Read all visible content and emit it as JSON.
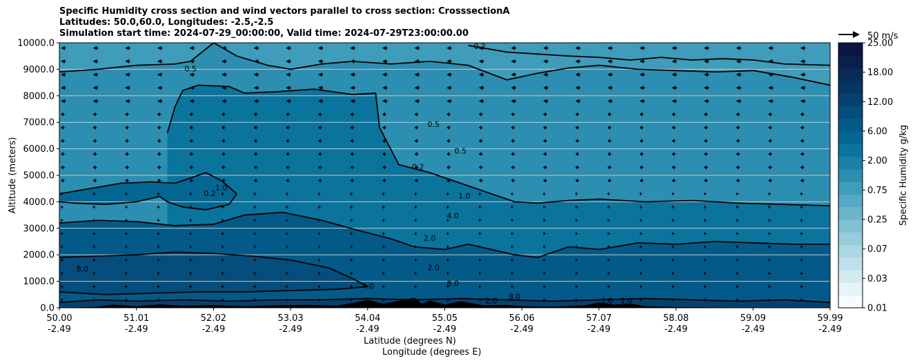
{
  "title_lines": [
    "Specific Humidity cross section and wind vectors parallel to cross section: CrosssectionA",
    "Latitudes: 50.0,60.0, Longitudes: -2.5,-2.5",
    "Simulation start time: 2024-07-29_00:00:00, Valid time: 2024-07-29T23:00:00.00"
  ],
  "quiver_key_label": "50 m/s",
  "colorbar": {
    "label": "Specific Humidity g/kg",
    "tick_labels": [
      "0.01",
      "0.03",
      "0.07",
      "0.25",
      "0.75",
      "2.00",
      "6.00",
      "12.00",
      "18.00",
      "25.00"
    ],
    "colors": [
      "#f7fbfd",
      "#e6f3f7",
      "#d3eaf1",
      "#bfe0ea",
      "#abd6e3",
      "#96ccdc",
      "#80c1d4",
      "#6ab5cc",
      "#55a9c4",
      "#3f9cbb",
      "#2c8fb1",
      "#1981a7",
      "#0b749d",
      "#046793",
      "#035a88",
      "#044d7c",
      "#05416f",
      "#063563",
      "#082a57",
      "#0a204b",
      "#0c1641"
    ]
  },
  "chart_data": {
    "type": "heatmap",
    "title": "Specific Humidity cross section and wind vectors parallel to cross section: CrosssectionA",
    "xlabel": [
      "Latitude (degrees N)",
      "Longitude (degrees E)"
    ],
    "ylabel": "Altitude (meters)",
    "xlim": [
      50.0,
      59.99
    ],
    "ylim": [
      0,
      10000
    ],
    "x_tick_lat": [
      "50.00",
      "51.01",
      "52.02",
      "53.03",
      "54.04",
      "55.05",
      "56.06",
      "57.07",
      "58.08",
      "59.09",
      "59.99"
    ],
    "x_tick_lon": [
      "-2.49",
      "-2.49",
      "-2.49",
      "-2.49",
      "-2.49",
      "-2.49",
      "-2.49",
      "-2.49",
      "-2.49",
      "-2.49",
      "-2.49"
    ],
    "y_ticks": [
      0,
      1000,
      2000,
      3000,
      4000,
      5000,
      6000,
      7000,
      8000,
      9000,
      10000
    ],
    "y_tick_labels": [
      "0.0",
      "1000.0",
      "2000.0",
      "3000.0",
      "4000.0",
      "5000.0",
      "6000.0",
      "7000.0",
      "8000.0",
      "9000.0",
      "10000.0"
    ],
    "grid": "horizontal",
    "contour_levels": [
      0.2,
      0.5,
      1.0,
      2.0,
      4.0,
      8.0
    ],
    "contour_labels": [
      {
        "text": "0.2",
        "x": 55.45,
        "y": 9850
      },
      {
        "text": "0.5",
        "x": 51.7,
        "y": 9000
      },
      {
        "text": "0.5",
        "x": 54.85,
        "y": 6900
      },
      {
        "text": "0.5",
        "x": 55.2,
        "y": 5900
      },
      {
        "text": "0.2",
        "x": 54.65,
        "y": 5300
      },
      {
        "text": "1.0",
        "x": 52.1,
        "y": 4500
      },
      {
        "text": "0.2",
        "x": 51.95,
        "y": 4300
      },
      {
        "text": "1.0",
        "x": 55.25,
        "y": 4200
      },
      {
        "text": "4.0",
        "x": 55.1,
        "y": 3450
      },
      {
        "text": "2.0",
        "x": 54.8,
        "y": 2600
      },
      {
        "text": "2.0",
        "x": 54.85,
        "y": 1500
      },
      {
        "text": "8.0",
        "x": 50.3,
        "y": 1450
      },
      {
        "text": "4.0",
        "x": 54.0,
        "y": 800
      },
      {
        "text": "8.0",
        "x": 55.1,
        "y": 900
      },
      {
        "text": "2.0",
        "x": 55.6,
        "y": 250
      },
      {
        "text": "8.0",
        "x": 55.9,
        "y": 400
      },
      {
        "text": "1.0",
        "x": 57.1,
        "y": 250
      },
      {
        "text": "1.0",
        "x": 57.35,
        "y": 250
      }
    ],
    "contours": [
      {
        "level": 0.2,
        "x": [
          55.3,
          55.8,
          56.6,
          57.0,
          57.4,
          57.8,
          58.2,
          58.6,
          59.0,
          59.4,
          59.99
        ],
        "y": [
          9900,
          9650,
          9500,
          9450,
          9350,
          9450,
          9350,
          9400,
          9350,
          9200,
          9150
        ]
      },
      {
        "level": 0.5,
        "x": [
          50.0,
          50.5,
          51.0,
          51.5,
          51.7,
          52.0,
          52.3,
          52.7,
          53.0,
          53.4,
          53.8,
          54.3,
          54.8,
          55.3,
          55.8,
          56.2,
          56.6,
          57.0,
          57.5,
          58.0,
          58.5,
          59.0,
          59.5,
          59.99
        ],
        "y": [
          8900,
          9000,
          9150,
          9200,
          9300,
          10000,
          9500,
          9150,
          9000,
          9200,
          9300,
          9200,
          9300,
          9150,
          8600,
          8850,
          9050,
          9150,
          9000,
          8950,
          8900,
          8950,
          8700,
          8400
        ]
      },
      {
        "level": 1.0,
        "x": [
          51.4,
          51.5,
          51.6,
          51.8,
          52.2,
          52.4,
          52.8,
          53.3,
          53.8,
          54.1,
          54.15,
          54.4,
          54.8,
          55.2,
          55.6,
          55.9,
          56.2,
          56.6,
          57.0,
          57.6,
          58.2,
          58.8,
          59.4,
          59.99
        ],
        "y": [
          6600,
          7600,
          8200,
          8400,
          8350,
          8100,
          8150,
          8250,
          8050,
          8100,
          6800,
          5400,
          5100,
          4700,
          4300,
          4000,
          3950,
          4050,
          4100,
          4000,
          4050,
          3950,
          3900,
          3850
        ]
      },
      {
        "level": 1.0,
        "x": [
          50.0,
          50.4,
          50.8,
          51.2,
          51.5,
          51.7,
          51.9,
          52.1,
          52.3,
          52.2,
          51.9,
          51.6,
          51.4,
          51.3,
          51.0,
          50.6,
          50.2,
          50.0
        ],
        "y": [
          4300,
          4500,
          4700,
          4750,
          4700,
          4900,
          5100,
          4800,
          4300,
          3900,
          3700,
          3800,
          4000,
          4200,
          4000,
          3900,
          3950,
          4000
        ]
      },
      {
        "level": 2.0,
        "x": [
          50.0,
          50.5,
          51.0,
          51.5,
          52.0,
          52.4,
          52.9,
          53.4,
          53.9,
          54.3,
          54.6,
          55.0,
          55.3,
          55.6,
          55.9,
          56.2,
          56.6,
          57.0,
          57.5,
          58.0,
          58.5,
          59.0,
          59.5,
          59.99
        ],
        "y": [
          3200,
          3300,
          3250,
          3100,
          3150,
          3500,
          3600,
          3300,
          2900,
          2600,
          2300,
          2200,
          2400,
          2200,
          2000,
          1900,
          2300,
          2200,
          2450,
          2400,
          2500,
          2450,
          2400,
          2400
        ]
      },
      {
        "level": 4.0,
        "x": [
          50.0,
          50.5,
          51.0,
          51.5,
          52.0,
          52.5,
          53.0,
          53.5,
          53.8,
          54.0,
          53.6,
          53.0,
          52.4,
          51.8,
          51.2,
          50.6,
          50.0
        ],
        "y": [
          1900,
          1950,
          2000,
          2100,
          2050,
          1950,
          1800,
          1500,
          1100,
          800,
          700,
          650,
          600,
          600,
          550,
          500,
          600
        ]
      },
      {
        "level": 8.0,
        "x": [
          50.0,
          50.5,
          51.0,
          51.6,
          52.2,
          52.8,
          53.4,
          54.0,
          54.6,
          55.2,
          55.8,
          56.4,
          57.0,
          57.6,
          58.2,
          58.8,
          59.4,
          59.99
        ],
        "y": [
          200,
          300,
          250,
          300,
          250,
          300,
          300,
          350,
          300,
          350,
          300,
          250,
          300,
          350,
          300,
          250,
          300,
          200
        ]
      }
    ],
    "terrain": {
      "x": [
        50.0,
        50.5,
        50.7,
        51.0,
        51.3,
        51.6,
        52.0,
        52.4,
        52.8,
        53.2,
        53.6,
        53.8,
        54.0,
        54.2,
        54.4,
        54.6,
        54.7,
        54.8,
        55.0,
        55.2,
        55.5,
        55.8,
        56.0,
        56.4,
        56.8,
        57.0,
        57.2,
        57.4,
        57.6,
        58.0,
        58.5,
        59.0,
        59.5,
        59.99
      ],
      "y": [
        0,
        40,
        120,
        60,
        130,
        80,
        100,
        60,
        90,
        110,
        80,
        180,
        300,
        150,
        260,
        380,
        150,
        280,
        120,
        250,
        90,
        110,
        60,
        40,
        90,
        200,
        120,
        160,
        60,
        30,
        20,
        10,
        0,
        0
      ]
    },
    "wind_u_ms": -4,
    "wind_w_ms": 0,
    "quiver_key_ms": 50
  }
}
